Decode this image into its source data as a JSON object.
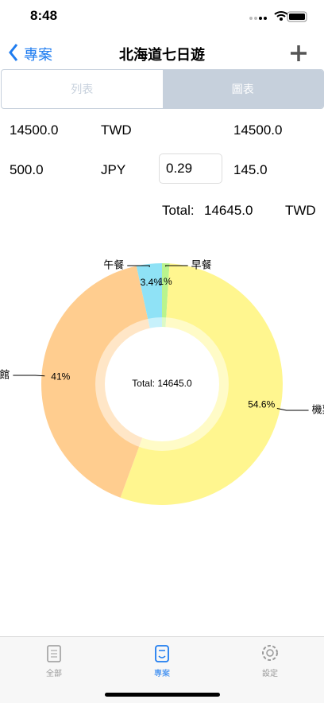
{
  "status_bar": {
    "time": "8:48"
  },
  "nav": {
    "back": "專案",
    "title": "北海道七日遊"
  },
  "segments": [
    "列表",
    "圖表"
  ],
  "rows": [
    {
      "amount": "14500.0",
      "currency": "TWD",
      "converted": "14500.0"
    },
    {
      "amount": "500.0",
      "currency": "JPY",
      "rate": "0.29",
      "converted": "145.0"
    }
  ],
  "total": {
    "label": "Total:",
    "amount": "14645.0",
    "currency": "TWD"
  },
  "chart": {
    "type": "pie",
    "center_text": "Total: 14645.0",
    "categories": [
      "早餐",
      "機票",
      "旅館",
      "午餐"
    ],
    "values": [
      1,
      54.6,
      41,
      3.4
    ],
    "value_labels": [
      "1%",
      "54.6%",
      "41%",
      "3.4%"
    ],
    "colors": [
      "#b9f48e",
      "#fff68f",
      "#ffcd8f",
      "#8fe2f6"
    ]
  },
  "tabs": [
    "全部",
    "專案",
    "設定"
  ]
}
